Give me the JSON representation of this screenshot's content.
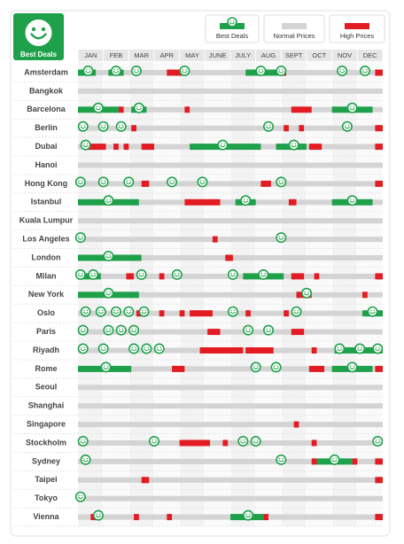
{
  "chart_data": {
    "type": "timeline",
    "logo_text": "Best Deals",
    "legend": [
      {
        "name": "Best Deals",
        "color": "#1fa04a"
      },
      {
        "name": "Normal Prices",
        "color": "#d4d4d4"
      },
      {
        "name": "High Prices",
        "color": "#e31b23"
      }
    ],
    "months": [
      "JAN",
      "FEB",
      "MAR",
      "APR",
      "MAY",
      "JUNE",
      "JULY",
      "AUG",
      "SEPT",
      "OCT",
      "NOV",
      "DEC"
    ],
    "xlim": [
      0,
      12
    ],
    "cities": [
      {
        "name": "Amsterdam",
        "best": [
          [
            0,
            0.7
          ],
          [
            1.2,
            1.8
          ],
          [
            6.6,
            7.9
          ]
        ],
        "high": [
          [
            3.5,
            4.1
          ],
          [
            7.9,
            8.2
          ],
          [
            11.7,
            12
          ]
        ],
        "smileys": [
          0.4,
          1.5,
          2.3,
          4.2,
          7.2,
          8.0,
          10.4,
          11.3
        ]
      },
      {
        "name": "Bangkok",
        "best": [],
        "high": [],
        "smileys": []
      },
      {
        "name": "Barcelona",
        "best": [
          [
            0,
            1.6
          ],
          [
            2.1,
            2.7
          ],
          [
            10.0,
            11.6
          ]
        ],
        "high": [
          [
            1.6,
            1.8
          ],
          [
            4.2,
            4.4
          ],
          [
            8.4,
            9.2
          ]
        ],
        "smileys": [
          0.8,
          2.4,
          10.8
        ]
      },
      {
        "name": "Berlin",
        "best": [],
        "high": [
          [
            2.1,
            2.3
          ],
          [
            8.1,
            8.3
          ],
          [
            8.7,
            8.9
          ],
          [
            11.7,
            12
          ]
        ],
        "smileys": [
          0.2,
          1.0,
          1.7,
          7.5,
          10.6
        ]
      },
      {
        "name": "Dubai",
        "best": [
          [
            4.4,
            7.2
          ],
          [
            7.8,
            9.0
          ]
        ],
        "high": [
          [
            0.4,
            1.1
          ],
          [
            1.4,
            1.6
          ],
          [
            1.8,
            2.0
          ],
          [
            2.5,
            3.0
          ],
          [
            9.1,
            9.6
          ],
          [
            11.7,
            12
          ]
        ],
        "smileys": [
          0.3,
          5.7,
          8.5
        ]
      },
      {
        "name": "Hanoi",
        "best": [],
        "high": [],
        "smileys": []
      },
      {
        "name": "Hong Kong",
        "best": [],
        "high": [
          [
            2.5,
            2.8
          ],
          [
            7.2,
            7.6
          ],
          [
            11.7,
            12
          ]
        ],
        "smileys": [
          0.1,
          1.0,
          2.0,
          3.7,
          4.9,
          8.0
        ]
      },
      {
        "name": "Istanbul",
        "best": [
          [
            0,
            2.4
          ],
          [
            6.2,
            7.0
          ],
          [
            10.0,
            11.6
          ]
        ],
        "high": [
          [
            4.2,
            5.6
          ],
          [
            8.3,
            8.6
          ]
        ],
        "smileys": [
          1.2,
          6.6,
          10.8
        ]
      },
      {
        "name": "Kuala Lumpur",
        "best": [],
        "high": [],
        "smileys": []
      },
      {
        "name": "Los Angeles",
        "best": [],
        "high": [
          [
            5.3,
            5.5
          ]
        ],
        "smileys": [
          0.1,
          8.0
        ]
      },
      {
        "name": "London",
        "best": [
          [
            0,
            2.5
          ]
        ],
        "high": [
          [
            5.8,
            6.1
          ]
        ],
        "smileys": [
          1.2
        ]
      },
      {
        "name": "Milan",
        "best": [
          [
            0,
            0.9
          ],
          [
            6.5,
            8.1
          ]
        ],
        "high": [
          [
            1.9,
            2.2
          ],
          [
            3.2,
            3.4
          ],
          [
            8.4,
            8.9
          ],
          [
            9.3,
            9.5
          ],
          [
            11.7,
            12
          ]
        ],
        "smileys": [
          0.1,
          0.6,
          2.5,
          3.9,
          6.1,
          7.3
        ]
      },
      {
        "name": "New York",
        "best": [
          [
            0,
            2.4
          ]
        ],
        "high": [
          [
            8.6,
            9.2
          ],
          [
            11.2,
            11.4
          ]
        ],
        "smileys": [
          1.2,
          9.0
        ]
      },
      {
        "name": "Oslo",
        "best": [
          [
            11.2,
            12
          ]
        ],
        "high": [
          [
            2.3,
            2.5
          ],
          [
            3.2,
            3.4
          ],
          [
            4.0,
            4.2
          ],
          [
            4.4,
            5.3
          ],
          [
            6.6,
            6.8
          ],
          [
            8.1,
            8.3
          ]
        ],
        "smileys": [
          0.3,
          0.9,
          1.5,
          2.0,
          2.6,
          6.1,
          8.6,
          11.6
        ]
      },
      {
        "name": "Paris",
        "best": [],
        "high": [
          [
            5.1,
            5.6
          ],
          [
            8.4,
            8.9
          ]
        ],
        "smileys": [
          0.2,
          1.2,
          1.7,
          2.2,
          6.7,
          7.5
        ]
      },
      {
        "name": "Riyadh",
        "best": [
          [
            10.1,
            12
          ]
        ],
        "high": [
          [
            4.8,
            6.5
          ],
          [
            6.6,
            7.7
          ],
          [
            9.2,
            9.4
          ]
        ],
        "smileys": [
          0.2,
          1.0,
          2.2,
          2.7,
          3.2,
          10.3,
          11.1,
          11.8
        ]
      },
      {
        "name": "Rome",
        "best": [
          [
            0,
            2.1
          ],
          [
            10.0,
            11.6
          ]
        ],
        "high": [
          [
            3.7,
            4.2
          ],
          [
            9.1,
            9.7
          ],
          [
            11.7,
            12
          ]
        ],
        "smileys": [
          1.1,
          7.0,
          7.8,
          10.8
        ]
      },
      {
        "name": "Seoul",
        "best": [],
        "high": [],
        "smileys": []
      },
      {
        "name": "Shanghai",
        "best": [],
        "high": [],
        "smileys": []
      },
      {
        "name": "Singapore",
        "best": [],
        "high": [
          [
            8.5,
            8.7
          ]
        ],
        "smileys": []
      },
      {
        "name": "Stockholm",
        "best": [],
        "high": [
          [
            4.0,
            5.2
          ],
          [
            5.7,
            5.9
          ],
          [
            9.2,
            9.4
          ]
        ],
        "smileys": [
          0.2,
          3.0,
          6.5,
          7.0,
          11.8
        ]
      },
      {
        "name": "Sydney",
        "best": [
          [
            9.4,
            10.8
          ]
        ],
        "high": [
          [
            9.2,
            9.4
          ],
          [
            10.8,
            11.0
          ],
          [
            11.7,
            12
          ]
        ],
        "smileys": [
          0.3,
          8.0,
          10.1
        ]
      },
      {
        "name": "Taipei",
        "best": [],
        "high": [
          [
            2.5,
            2.8
          ],
          [
            11.7,
            12
          ]
        ],
        "smileys": []
      },
      {
        "name": "Tokyo",
        "best": [],
        "high": [],
        "smileys": [
          0.1
        ]
      },
      {
        "name": "Vienna",
        "best": [
          [
            6.0,
            7.3
          ]
        ],
        "high": [
          [
            0.5,
            0.7
          ],
          [
            2.2,
            2.4
          ],
          [
            3.5,
            3.7
          ],
          [
            7.3,
            7.5
          ],
          [
            11.7,
            12
          ]
        ],
        "smileys": [
          0.8,
          6.7
        ]
      }
    ]
  }
}
